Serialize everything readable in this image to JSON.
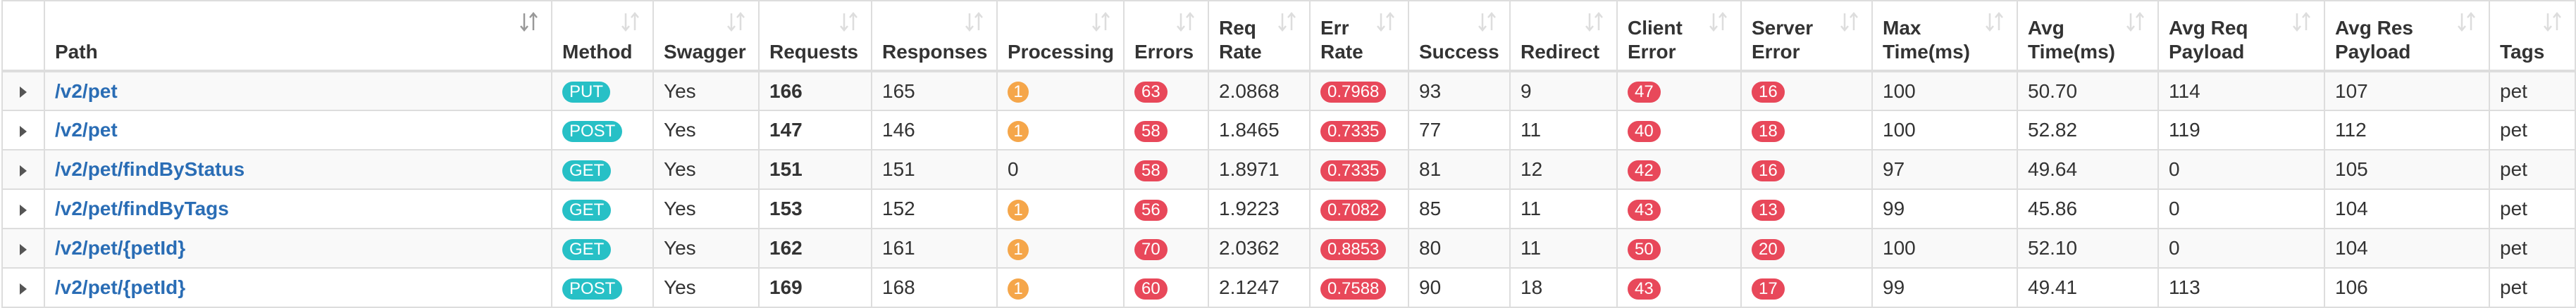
{
  "columns": [
    {
      "key": "expand",
      "label": ""
    },
    {
      "key": "path",
      "label": "Path"
    },
    {
      "key": "method",
      "label": "Method"
    },
    {
      "key": "swagger",
      "label": "Swagger"
    },
    {
      "key": "requests",
      "label": "Requests"
    },
    {
      "key": "responses",
      "label": "Responses"
    },
    {
      "key": "processing",
      "label": "Processing"
    },
    {
      "key": "errors",
      "label": "Errors"
    },
    {
      "key": "req_rate",
      "label": "Req\nRate"
    },
    {
      "key": "err_rate",
      "label": "Err\nRate"
    },
    {
      "key": "success",
      "label": "Success"
    },
    {
      "key": "redirect",
      "label": "Redirect"
    },
    {
      "key": "client_error",
      "label": "Client\nError"
    },
    {
      "key": "server_error",
      "label": "Server\nError"
    },
    {
      "key": "max_time",
      "label": "Max\nTime(ms)"
    },
    {
      "key": "avg_time",
      "label": "Avg\nTime(ms)"
    },
    {
      "key": "avg_req_payload",
      "label": "Avg Req\nPayload"
    },
    {
      "key": "avg_res_payload",
      "label": "Avg Res\nPayload"
    },
    {
      "key": "tags",
      "label": "Tags"
    }
  ],
  "rows": [
    {
      "path": "/v2/pet",
      "method": "PUT",
      "swagger": "Yes",
      "requests": "166",
      "responses": "165",
      "processing": "1",
      "errors": "63",
      "req_rate": "2.0868",
      "err_rate": "0.7968",
      "success": "93",
      "redirect": "9",
      "client_error": "47",
      "server_error": "16",
      "max_time": "100",
      "avg_time": "50.70",
      "avg_req_payload": "114",
      "avg_res_payload": "107",
      "tags": "pet"
    },
    {
      "path": "/v2/pet",
      "method": "POST",
      "swagger": "Yes",
      "requests": "147",
      "responses": "146",
      "processing": "1",
      "errors": "58",
      "req_rate": "1.8465",
      "err_rate": "0.7335",
      "success": "77",
      "redirect": "11",
      "client_error": "40",
      "server_error": "18",
      "max_time": "100",
      "avg_time": "52.82",
      "avg_req_payload": "119",
      "avg_res_payload": "112",
      "tags": "pet"
    },
    {
      "path": "/v2/pet/findByStatus",
      "method": "GET",
      "swagger": "Yes",
      "requests": "151",
      "responses": "151",
      "processing": "0",
      "errors": "58",
      "req_rate": "1.8971",
      "err_rate": "0.7335",
      "success": "81",
      "redirect": "12",
      "client_error": "42",
      "server_error": "16",
      "max_time": "97",
      "avg_time": "49.64",
      "avg_req_payload": "0",
      "avg_res_payload": "105",
      "tags": "pet"
    },
    {
      "path": "/v2/pet/findByTags",
      "method": "GET",
      "swagger": "Yes",
      "requests": "153",
      "responses": "152",
      "processing": "1",
      "errors": "56",
      "req_rate": "1.9223",
      "err_rate": "0.7082",
      "success": "85",
      "redirect": "11",
      "client_error": "43",
      "server_error": "13",
      "max_time": "99",
      "avg_time": "45.86",
      "avg_req_payload": "0",
      "avg_res_payload": "104",
      "tags": "pet"
    },
    {
      "path": "/v2/pet/{petId}",
      "method": "GET",
      "swagger": "Yes",
      "requests": "162",
      "responses": "161",
      "processing": "1",
      "errors": "70",
      "req_rate": "2.0362",
      "err_rate": "0.8853",
      "success": "80",
      "redirect": "11",
      "client_error": "50",
      "server_error": "20",
      "max_time": "100",
      "avg_time": "52.10",
      "avg_req_payload": "0",
      "avg_res_payload": "104",
      "tags": "pet"
    },
    {
      "path": "/v2/pet/{petId}",
      "method": "POST",
      "swagger": "Yes",
      "requests": "169",
      "responses": "168",
      "processing": "1",
      "errors": "60",
      "req_rate": "2.1247",
      "err_rate": "0.7588",
      "success": "90",
      "redirect": "18",
      "client_error": "43",
      "server_error": "17",
      "max_time": "99",
      "avg_time": "49.41",
      "avg_req_payload": "113",
      "avg_res_payload": "106",
      "tags": "pet"
    }
  ],
  "sort_icons": {
    "path": "sort-alpha-desc-icon",
    "default": "sort-icon"
  },
  "colors": {
    "method_badge": "#27c0c6",
    "error_badge": "#e8485a",
    "processing_badge": "#f5a64a",
    "link": "#2a6db5",
    "active_sort_icon": "#999999",
    "inactive_sort_icon": "#dddddd"
  }
}
